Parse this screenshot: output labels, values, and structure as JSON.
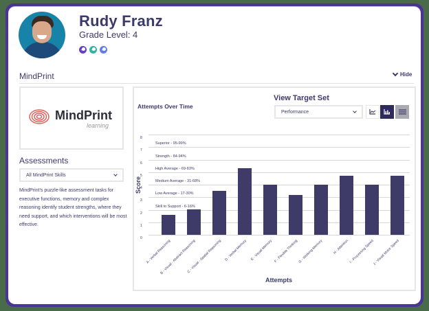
{
  "student": {
    "name": "Rudy Franz",
    "grade_label": "Grade Level: 4",
    "avatar_bg": "#1783a8",
    "badges": [
      {
        "name": "badge-purple",
        "color": "#6a3fc4"
      },
      {
        "name": "badge-teal",
        "color": "#2fb3a4"
      },
      {
        "name": "badge-blue",
        "color": "#5f7fe6"
      }
    ]
  },
  "section": {
    "title": "MindPrint",
    "hide_label": "Hide"
  },
  "logo": {
    "brand": "MindPrint",
    "sub": "learning",
    "accent": "#e0605a"
  },
  "assessments": {
    "title": "Assessments",
    "select_value": "All MindPrint Skills",
    "description": "MindPrint's puzzle-like assessment tasks for executive functions, memory and complex reasoning identify student strengths, where they need support, and which interventions will be most effective."
  },
  "chart_panel": {
    "title": "Attempts Over Time",
    "view_target_title": "View Target Set",
    "target_select_value": "Performance",
    "view_buttons": [
      {
        "name": "line-chart-button",
        "icon": "line-chart-icon",
        "active": false
      },
      {
        "name": "bar-chart-button",
        "icon": "bar-chart-icon",
        "active": true
      },
      {
        "name": "table-view-button",
        "icon": "menu-lines-icon",
        "active": false
      }
    ]
  },
  "chart_data": {
    "type": "bar",
    "title": "Attempts Over Time",
    "xlabel": "Attempts",
    "ylabel": "Score",
    "ylim": [
      0,
      8
    ],
    "yticks": [
      "0",
      "1",
      "2",
      "3",
      "4",
      "5",
      "6",
      "7",
      "8"
    ],
    "grid": true,
    "bar_color": "#3e3b69",
    "categories": [
      "A - Verbal Reasoning",
      "B - Visual - Abstract Reasoning",
      "C - Visual - Spatial Reasoning",
      "D - Verbal Memory",
      "E - Visual Memory",
      "F - Flexible Thinking",
      "G - Working Memory",
      "H - Attention",
      "I - Processing Speed",
      "J - Visual Motor Speed"
    ],
    "values": [
      1.6,
      2.05,
      3.5,
      5.3,
      4.0,
      3.2,
      4.0,
      4.7,
      4.0,
      4.7
    ],
    "target_bands": [
      {
        "label": "Superior - 95-99%",
        "y": 7
      },
      {
        "label": "Strength - 84-94%",
        "y": 6
      },
      {
        "label": "High Average - 69-83%",
        "y": 5
      },
      {
        "label": "Medium Average - 31-68%",
        "y": 4
      },
      {
        "label": "Low Average - 17-30%",
        "y": 3
      },
      {
        "label": "Skill to Support - 6-16%",
        "y": 2
      }
    ]
  }
}
